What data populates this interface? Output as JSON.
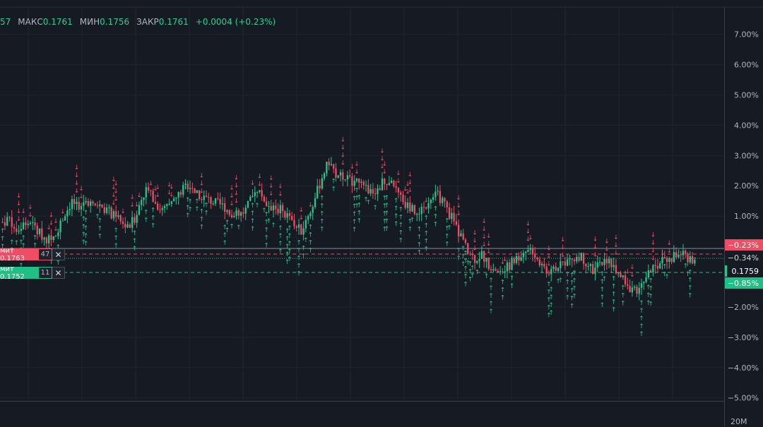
{
  "ohlc": {
    "prefix": "57",
    "high_label": "МАКС",
    "high": "0.1761",
    "low_label": "МИН",
    "low": "0.1756",
    "close_label": "ЗАКР",
    "close": "0.1761",
    "change": "+0.0004 (+0.23%)"
  },
  "orders": {
    "sell": {
      "label": "мит 0.1763",
      "qty": "47",
      "close_icon": "close-x-icon"
    },
    "buy": {
      "label": "мит 0.1752",
      "qty": "11",
      "close_icon": "close-x-icon"
    }
  },
  "axis_badges": {
    "sell_pct": "−0.23%",
    "last_pct": "−0.34%",
    "last_price": "0.1759",
    "buy_pct": "−0.85%"
  },
  "volume_axis_label": "20M",
  "colors": {
    "background": "#161a23",
    "up": "#26c68c",
    "down": "#ef4d63",
    "axis_text": "#b2b5be"
  },
  "chart_data": {
    "type": "candlestick",
    "y_axis": {
      "scale": "percent",
      "ticks": [
        "7.00%",
        "6.00%",
        "5.00%",
        "4.00%",
        "3.00%",
        "2.00%",
        "1.00%",
        "−2.00%",
        "−3.00%",
        "−4.00%",
        "−5.00%"
      ],
      "tick_values": [
        7,
        6,
        5,
        4,
        3,
        2,
        1,
        -2,
        -3,
        -4,
        -5
      ],
      "range": [
        -5.1,
        7.9
      ]
    },
    "series": [
      {
        "kind": "close-percent",
        "values": [
          0.8,
          0.9,
          0.6,
          0.7,
          0.8,
          0.5,
          0.3,
          0.2,
          0.6,
          1.1,
          1.5,
          1.2,
          1.6,
          1.3,
          1.4,
          1.2,
          1.0,
          0.8,
          0.6,
          0.9,
          1.6,
          2.0,
          1.4,
          1.2,
          1.3,
          1.6,
          1.9,
          2.1,
          1.8,
          1.6,
          1.5,
          1.4,
          1.3,
          1.1,
          1.0,
          1.2,
          1.6,
          1.8,
          1.4,
          1.3,
          1.2,
          1.0,
          0.7,
          0.5,
          1.0,
          1.6,
          2.3,
          2.8,
          2.4,
          2.3,
          2.2,
          2.1,
          1.9,
          1.8,
          1.9,
          2.2,
          2.0,
          1.7,
          1.4,
          1.2,
          1.0,
          1.4,
          1.8,
          1.6,
          1.2,
          0.8,
          0.3,
          -0.2,
          -0.4,
          -0.3,
          -0.6,
          -0.8,
          -0.9,
          -0.6,
          -0.4,
          -0.2,
          0.0,
          -0.4,
          -0.7,
          -0.9,
          -0.6,
          -0.5,
          -0.4,
          -0.3,
          -0.5,
          -0.8,
          -0.6,
          -0.4,
          -0.7,
          -1.0,
          -1.3,
          -1.5,
          -1.2,
          -0.9,
          -0.7,
          -0.4,
          -0.5,
          -0.2,
          -0.3,
          -0.4
        ]
      }
    ],
    "arrow_labels": {
      "up_symbol": "↑",
      "down_symbol": "↓"
    }
  }
}
